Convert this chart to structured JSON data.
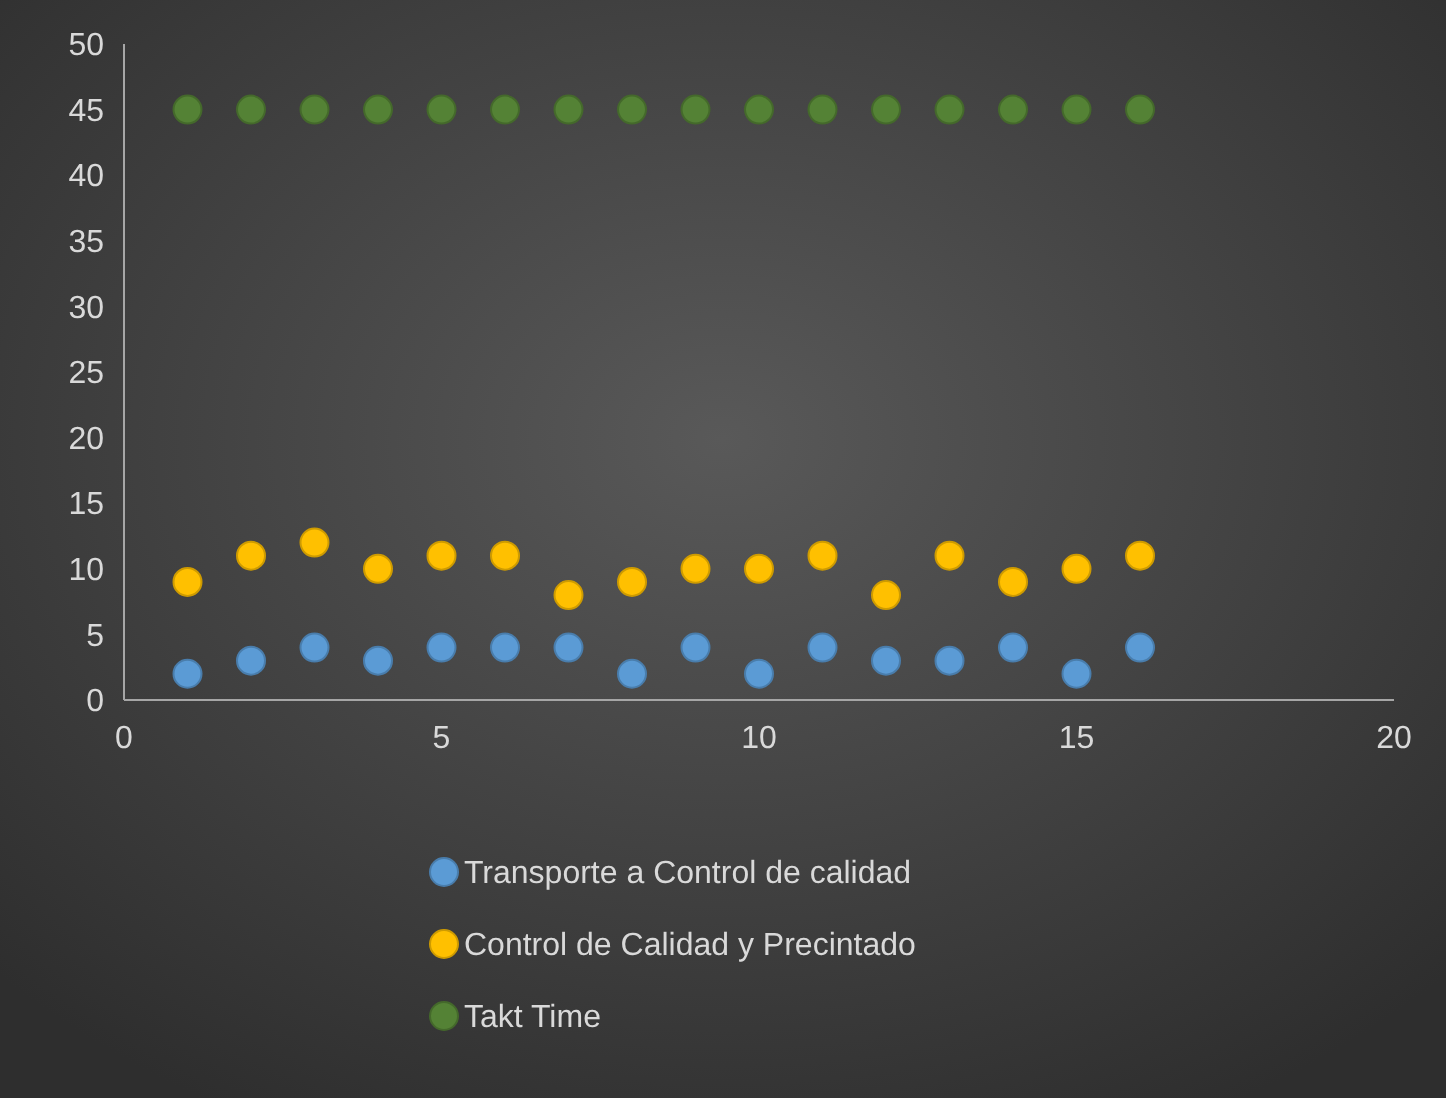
{
  "chart_data": {
    "type": "scatter",
    "x": [
      1,
      2,
      3,
      4,
      5,
      6,
      7,
      8,
      9,
      10,
      11,
      12,
      13,
      14,
      15,
      16
    ],
    "series": [
      {
        "name": "Transporte a Control de calidad",
        "color": "#5b9bd5",
        "values": [
          2,
          3,
          4,
          3,
          4,
          4,
          4,
          2,
          4,
          2,
          4,
          3,
          3,
          4,
          2,
          4
        ]
      },
      {
        "name": "Control de Calidad y Precintado",
        "color": "#ffc000",
        "values": [
          9,
          11,
          12,
          10,
          11,
          11,
          8,
          9,
          10,
          10,
          11,
          8,
          11,
          9,
          10,
          11
        ]
      },
      {
        "name": "Takt Time",
        "color": "#548235",
        "values": [
          45,
          45,
          45,
          45,
          45,
          45,
          45,
          45,
          45,
          45,
          45,
          45,
          45,
          45,
          45,
          45
        ]
      }
    ],
    "xlim": [
      0,
      20
    ],
    "xticks": [
      0,
      5,
      10,
      15,
      20
    ],
    "ylim": [
      0,
      50
    ],
    "yticks": [
      0,
      5,
      10,
      15,
      20,
      25,
      30,
      35,
      40,
      45,
      50
    ],
    "grid": false,
    "legend": "bottom",
    "marker": "circle"
  }
}
